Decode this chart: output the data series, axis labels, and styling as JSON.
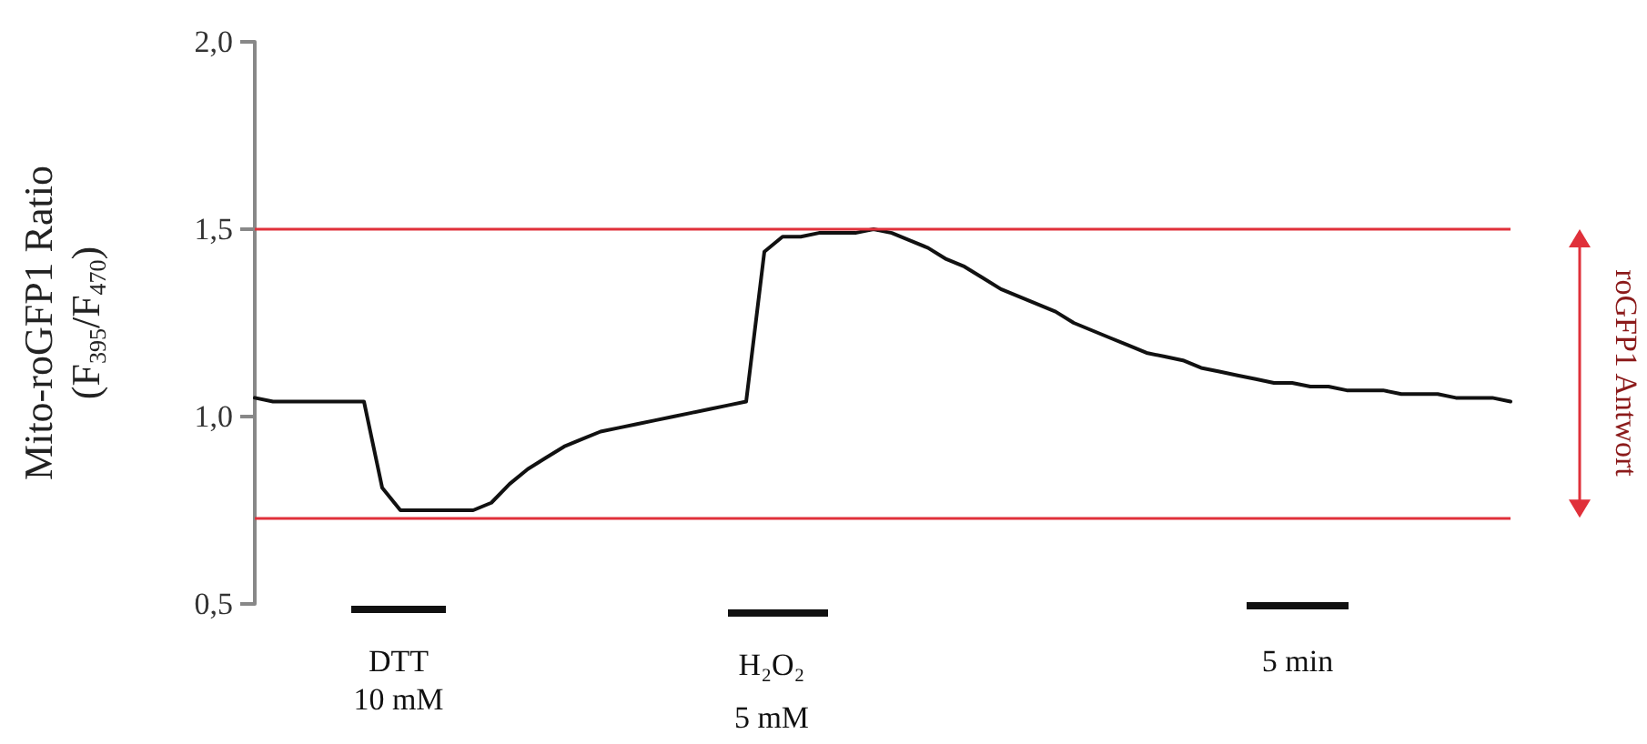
{
  "chart_data": {
    "type": "line",
    "ylabel": "Mito-roGFP1 Ratio\n(F$_{395}$/F$_{470}$)",
    "categories": [
      null,
      null,
      null,
      null,
      null,
      null,
      null,
      null,
      null,
      null,
      null,
      null,
      null,
      null,
      null,
      null,
      null,
      null,
      null,
      null,
      null,
      null,
      null,
      null,
      null,
      null,
      null,
      null,
      null,
      null,
      null,
      null,
      null,
      null,
      null,
      null,
      null,
      null,
      null,
      null,
      null,
      null,
      null,
      null,
      null,
      null,
      null,
      null,
      null,
      null,
      null,
      null,
      null,
      null,
      null,
      null,
      null,
      null,
      null,
      null,
      null,
      null,
      null,
      null,
      null,
      null,
      null,
      null,
      null,
      null
    ],
    "series": [
      {
        "color": "#111111",
        "values": [
          1.05,
          1.04,
          1.04,
          1.04,
          1.04,
          1.04,
          1.04,
          0.81,
          0.75,
          0.75,
          0.75,
          0.75,
          0.75,
          0.77,
          0.82,
          0.86,
          0.89,
          0.92,
          0.94,
          0.96,
          0.97,
          0.98,
          0.99,
          1.0,
          1.01,
          1.02,
          1.03,
          1.04,
          1.44,
          1.48,
          1.48,
          1.49,
          1.49,
          1.49,
          1.5,
          1.49,
          1.47,
          1.45,
          1.42,
          1.4,
          1.37,
          1.34,
          1.32,
          1.3,
          1.28,
          1.25,
          1.23,
          1.21,
          1.19,
          1.17,
          1.16,
          1.15,
          1.13,
          1.12,
          1.11,
          1.1,
          1.09,
          1.09,
          1.08,
          1.08,
          1.07,
          1.07,
          1.07,
          1.06,
          1.06,
          1.06,
          1.05,
          1.05,
          1.05,
          1.04
        ]
      }
    ],
    "ylim": [
      0.5,
      2.0
    ],
    "yticks": [
      {
        "value": 0.5,
        "label": "0,5"
      },
      {
        "value": 1.0,
        "label": "1,0"
      },
      {
        "value": 1.5,
        "label": "1,5"
      },
      {
        "value": 2.0,
        "label": "2,0"
      }
    ],
    "ref_lines": [
      {
        "axis": "y",
        "value": 1.5,
        "color": "#e0303a"
      },
      {
        "axis": "y",
        "value": 0.73,
        "color": "#e0303a"
      }
    ],
    "annotations": [
      "DTT",
      "10 mM",
      "H₂O₂",
      "5 mM",
      "5 min",
      "roGFP1 Antwort"
    ],
    "tick_labels": "y",
    "marker": "none",
    "line_style": "solid"
  }
}
